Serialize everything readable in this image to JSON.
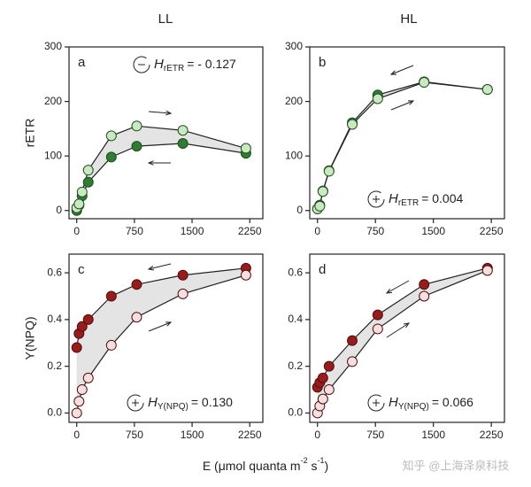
{
  "column_titles": [
    "LL",
    "HL"
  ],
  "x_label": {
    "main": "E (μmol quanta m",
    "sup1": "-2",
    "mid": " s",
    "sup2": "-1",
    "end": ")"
  },
  "watermark": "知乎 @上海泽泉科技",
  "chart_data": [
    {
      "type": "line",
      "letter": "a",
      "y_label": "rETR",
      "annotation": {
        "symbol": "H",
        "subscript": "rETR",
        "text": "= - 0.127"
      },
      "x": [
        0,
        30,
        70,
        150,
        450,
        780,
        1380,
        2200
      ],
      "xlim": [
        -100,
        2420
      ],
      "xticks": [
        0,
        750,
        1500,
        2250
      ],
      "ylim": [
        -15,
        300
      ],
      "yticks": [
        0,
        100,
        200,
        300
      ],
      "series": [
        {
          "color": "#c9eac0",
          "edge": "#1e4d1e",
          "values": [
            5,
            12,
            34,
            74,
            137,
            155,
            147,
            114
          ]
        },
        {
          "color": "#2e7d32",
          "edge": "#1e4d1e",
          "values": [
            0,
            10,
            27,
            52,
            98,
            118,
            123,
            105
          ]
        }
      ]
    },
    {
      "type": "line",
      "letter": "b",
      "annotation": {
        "symbol": "H",
        "subscript": "rETR",
        "text": "= 0.004"
      },
      "x": [
        0,
        30,
        70,
        150,
        450,
        780,
        1380,
        2200
      ],
      "xlim": [
        -100,
        2420
      ],
      "xticks": [
        0,
        750,
        1500,
        2250
      ],
      "ylim": [
        -15,
        300
      ],
      "yticks": [
        0,
        100,
        200,
        300
      ],
      "series": [
        {
          "color": "#c9eac0",
          "edge": "#1e4d1e",
          "values": [
            3,
            8,
            35,
            72,
            158,
            205,
            235,
            222
          ]
        },
        {
          "color": "#2e7d32",
          "edge": "#1e4d1e",
          "values": [
            3,
            10,
            36,
            73,
            161,
            212,
            236,
            222
          ]
        }
      ]
    },
    {
      "type": "line",
      "letter": "c",
      "y_label": "Y(NPQ)",
      "annotation": {
        "symbol": "H",
        "subscript": "Y(NPQ)",
        "text": "= 0.130"
      },
      "x": [
        0,
        30,
        70,
        150,
        450,
        780,
        1380,
        2200
      ],
      "xlim": [
        -100,
        2420
      ],
      "xticks": [
        0,
        750,
        1500,
        2250
      ],
      "ylim": [
        -0.04,
        0.68
      ],
      "yticks": [
        {
          "value": 0,
          "label": "0.0"
        },
        0.2,
        0.4,
        0.6
      ],
      "series": [
        {
          "color": "#f8dede",
          "edge": "#4a1010",
          "values": [
            0,
            0.05,
            0.1,
            0.15,
            0.29,
            0.41,
            0.51,
            0.59
          ]
        },
        {
          "color": "#9b1b1b",
          "edge": "#4a1010",
          "values": [
            0.28,
            0.34,
            0.37,
            0.4,
            0.5,
            0.55,
            0.59,
            0.62
          ]
        }
      ]
    },
    {
      "type": "line",
      "letter": "d",
      "annotation": {
        "symbol": "H",
        "subscript": "Y(NPQ)",
        "text": "= 0.066"
      },
      "x": [
        0,
        30,
        70,
        150,
        450,
        780,
        1380,
        2200
      ],
      "xlim": [
        -100,
        2420
      ],
      "xticks": [
        0,
        750,
        1500,
        2250
      ],
      "ylim": [
        -0.04,
        0.68
      ],
      "yticks": [
        {
          "value": 0,
          "label": "0.0"
        },
        0.2,
        0.4,
        0.6
      ],
      "series": [
        {
          "color": "#f8dede",
          "edge": "#4a1010",
          "values": [
            0,
            0.03,
            0.06,
            0.1,
            0.22,
            0.36,
            0.5,
            0.61
          ]
        },
        {
          "color": "#9b1b1b",
          "edge": "#4a1010",
          "values": [
            0.11,
            0.13,
            0.15,
            0.2,
            0.31,
            0.42,
            0.55,
            0.62
          ]
        }
      ]
    }
  ]
}
